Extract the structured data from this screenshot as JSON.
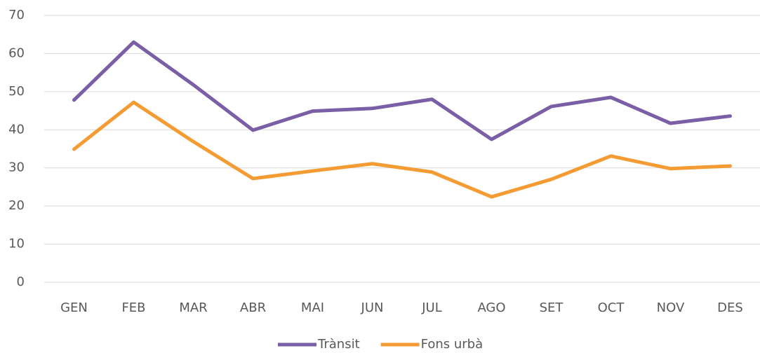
{
  "chart_data": {
    "type": "line",
    "categories": [
      "GEN",
      "FEB",
      "MAR",
      "ABR",
      "MAI",
      "JUN",
      "JUL",
      "AGO",
      "SET",
      "OCT",
      "NOV",
      "DES"
    ],
    "series": [
      {
        "name": "Trànsit",
        "color": "#7a5ea6",
        "values": [
          47.8,
          63.0,
          51.8,
          39.9,
          44.9,
          45.6,
          48.0,
          37.5,
          46.1,
          48.5,
          41.7,
          43.6
        ]
      },
      {
        "name": "Fons urbà",
        "color": "#f59b33",
        "values": [
          34.9,
          47.2,
          36.9,
          27.2,
          29.2,
          31.1,
          28.9,
          22.4,
          27.0,
          33.1,
          29.8,
          30.5
        ]
      }
    ],
    "ylim": [
      0,
      70
    ],
    "yticks": [
      0,
      10,
      20,
      30,
      40,
      50,
      60,
      70
    ],
    "grid": true,
    "legend": "bottom"
  }
}
